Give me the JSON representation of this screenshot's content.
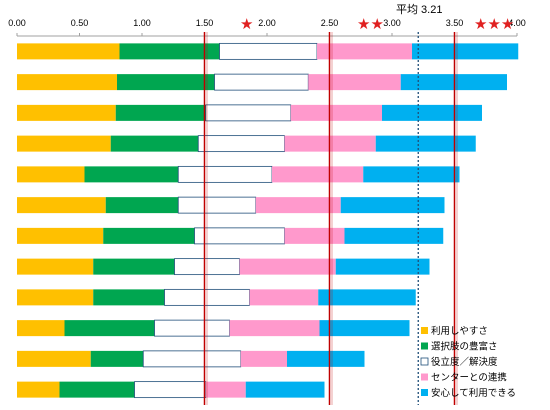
{
  "chart_data": {
    "type": "bar",
    "stacked": true,
    "orientation": "horizontal",
    "title": "",
    "xlabel": "",
    "ylabel": "",
    "xlim": [
      0,
      4.0
    ],
    "x_ticks": [
      "0.00",
      "0.50",
      "1.00",
      "1.50",
      "2.00",
      "2.50",
      "3.00",
      "3.50",
      "4.00"
    ],
    "grid": false,
    "legend_position": "bottom-right",
    "series": [
      {
        "name": "利用しやすさ",
        "color": "#FFC000",
        "values": [
          0.82,
          0.8,
          0.79,
          0.75,
          0.54,
          0.71,
          0.69,
          0.61,
          0.61,
          0.38,
          0.59,
          0.34
        ]
      },
      {
        "name": "選択肢の豊富さ",
        "color": "#00A650",
        "values": [
          0.8,
          0.78,
          0.72,
          0.7,
          0.75,
          0.58,
          0.73,
          0.65,
          0.57,
          0.72,
          0.42,
          0.6
        ]
      },
      {
        "name": "役立度／解決度",
        "color": "#FFFFFF",
        "values": [
          0.78,
          0.75,
          0.68,
          0.69,
          0.75,
          0.62,
          0.72,
          0.52,
          0.68,
          0.6,
          0.78,
          0.57
        ]
      },
      {
        "name": "センターとの連携",
        "color": "#FF99CC",
        "values": [
          0.76,
          0.74,
          0.73,
          0.73,
          0.73,
          0.68,
          0.48,
          0.77,
          0.55,
          0.72,
          0.37,
          0.32
        ]
      },
      {
        "name": "安心して利用できる",
        "color": "#00B0F0",
        "values": [
          0.85,
          0.85,
          0.8,
          0.8,
          0.77,
          0.83,
          0.79,
          0.75,
          0.78,
          0.72,
          0.62,
          0.63
        ]
      }
    ],
    "rows": 12,
    "reference_lines": [
      {
        "value": 1.5,
        "style": "solid",
        "color": "#C00000",
        "label": "★"
      },
      {
        "value": 2.5,
        "style": "solid",
        "color": "#C00000",
        "label": "★★"
      },
      {
        "value": 3.21,
        "style": "dotted",
        "color": "#1F4E79",
        "label": "平均 3.21"
      },
      {
        "value": 3.5,
        "style": "solid",
        "color": "#C00000",
        "label": "★★★"
      }
    ],
    "annotations": {
      "average": "平均 3.21",
      "one_star": "★",
      "two_star": "★★",
      "three_star": "★★★"
    }
  }
}
